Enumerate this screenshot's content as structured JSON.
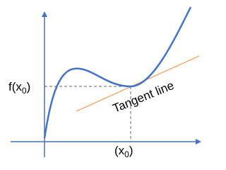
{
  "function_label": {
    "main": "f(x",
    "subscript": "0",
    "end": ")"
  },
  "x_label": {
    "main": "(x",
    "subscript": "0",
    "end": ")"
  },
  "tangent_label": "Tangent line"
}
